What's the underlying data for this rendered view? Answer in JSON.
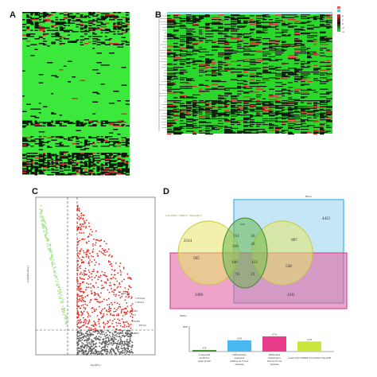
{
  "figure": {
    "panels": [
      "A",
      "B",
      "C",
      "D"
    ]
  },
  "panelB": {
    "legend_values": [
      "4",
      "2",
      "0",
      "-2",
      "-4"
    ]
  },
  "panelC": {
    "xlabel": "log2(FC)",
    "ylabel": "-log10(P.value)",
    "gene_labels": [
      "CYP7A1",
      "CYP19A1",
      "CYP1A2",
      "ESR1",
      "IL6",
      "EGFR",
      "PTGS2",
      "MMP9"
    ]
  },
  "panelD": {
    "set_labels": {
      "lower_left": "GSE41804 + DMETs + DisGeNET",
      "lower_left_short": "DMGs",
      "top": "GSE",
      "top_right": "DEGs",
      "bottom_left": "DMGs"
    },
    "venn_numbers": {
      "c_left_only": "2314",
      "blue_only": "4422",
      "c_right_only": "897",
      "top_left_inner": "151",
      "top_center": "43",
      "top_right_inner": "43",
      "mid_left": "310",
      "mid_left_outer": "935",
      "center": "140",
      "mid_right": "113",
      "mid_right_outer": "538",
      "low_left": "91",
      "low_right": "21",
      "pink_left_only": "3369",
      "pink_right_only": "1311"
    },
    "bar_values": [
      "474",
      "3545",
      "4776",
      "3176"
    ],
    "bar_labels": [
      "Compound predictive target in GIF",
      "Differentially expressed mRNAs in TCGA database",
      "Differential methylation sites in TCGA database",
      "GeneCards+OMIM+LiverAtlas+OncoDB"
    ],
    "bar_colors": [
      "#3c8a2e",
      "#4ab8f0",
      "#e83c8a",
      "#c8e63c"
    ],
    "bar_ylabel": "8000"
  }
}
